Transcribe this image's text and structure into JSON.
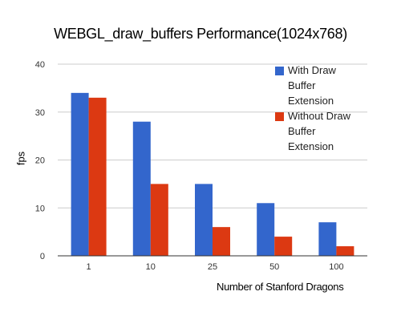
{
  "chart_data": {
    "type": "bar",
    "title": "WEBGL_draw_buffers Performance(1024x768)",
    "xlabel": "Number of Stanford Dragons",
    "ylabel": "fps",
    "categories": [
      "1",
      "10",
      "25",
      "50",
      "100"
    ],
    "series": [
      {
        "name": "With Draw Buffer Extension",
        "legend_lines": [
          "With Draw",
          "Buffer",
          "Extension"
        ],
        "color": "#3366cc",
        "values": [
          34,
          28,
          15,
          11,
          7
        ]
      },
      {
        "name": "Without Draw Buffer Extension",
        "legend_lines": [
          "Without Draw",
          "Buffer",
          "Extension"
        ],
        "color": "#dc3912",
        "values": [
          33,
          15,
          6,
          4,
          2
        ]
      }
    ],
    "ylim": [
      0,
      40
    ],
    "yticks": [
      0,
      10,
      20,
      30,
      40
    ],
    "grid": true,
    "legend_position": "top-right"
  }
}
